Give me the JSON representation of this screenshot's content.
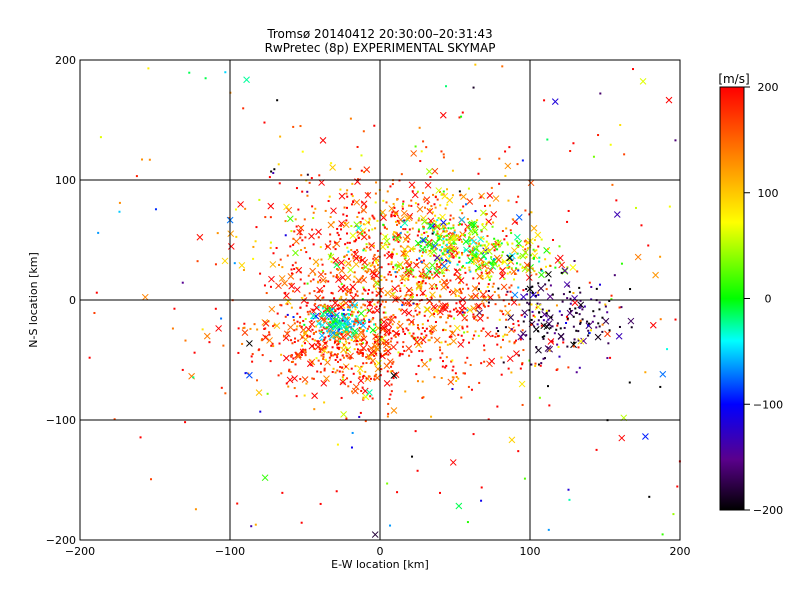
{
  "title_line1": "Tromsø 20140412 20:30:00–20:31:43",
  "title_line2": "RwPretec (8p) EXPERIMENTAL SKYMAP",
  "chart_data": {
    "type": "scatter",
    "xlabel": "E-W location [km]",
    "ylabel": "N-S location [km]",
    "xlim": [
      -200,
      200
    ],
    "ylim": [
      -200,
      200
    ],
    "xticks": [
      -200,
      -100,
      0,
      100,
      200
    ],
    "yticks": [
      -200,
      -100,
      0,
      100,
      200
    ],
    "grid": true,
    "marker_symbols": [
      "dot",
      "x"
    ],
    "colorbar": {
      "label": "[m/s]",
      "range": [
        -200,
        200
      ],
      "ticks": [
        -200,
        -100,
        0,
        100,
        200
      ],
      "colors": [
        "#000000",
        "#5a008c",
        "#0000ff",
        "#00ffff",
        "#00ff00",
        "#ffff00",
        "#ff8000",
        "#ff0000"
      ]
    },
    "clusters": [
      {
        "center": [
          15,
          40
        ],
        "spread": [
          45,
          35
        ],
        "count": 900,
        "value_mean": 160,
        "value_spread": 60
      },
      {
        "center": [
          -25,
          -35
        ],
        "spread": [
          30,
          22
        ],
        "count": 550,
        "value_mean": 175,
        "value_spread": 40
      },
      {
        "center": [
          -25,
          -18
        ],
        "spread": [
          10,
          6
        ],
        "count": 120,
        "value_mean": -40,
        "value_spread": 30
      },
      {
        "center": [
          45,
          45
        ],
        "spread": [
          20,
          12
        ],
        "count": 220,
        "value_mean": 20,
        "value_spread": 60
      },
      {
        "center": [
          85,
          35
        ],
        "spread": [
          15,
          10
        ],
        "count": 120,
        "value_mean": 60,
        "value_spread": 50
      },
      {
        "center": [
          120,
          -15
        ],
        "spread": [
          22,
          18
        ],
        "count": 180,
        "value_mean": -180,
        "value_spread": 30
      },
      {
        "center": [
          50,
          -25
        ],
        "spread": [
          45,
          25
        ],
        "count": 300,
        "value_mean": 170,
        "value_spread": 60
      },
      {
        "center": [
          0,
          0
        ],
        "spread": [
          160,
          150
        ],
        "count": 320,
        "value_mean": 80,
        "value_spread": 200
      }
    ]
  }
}
